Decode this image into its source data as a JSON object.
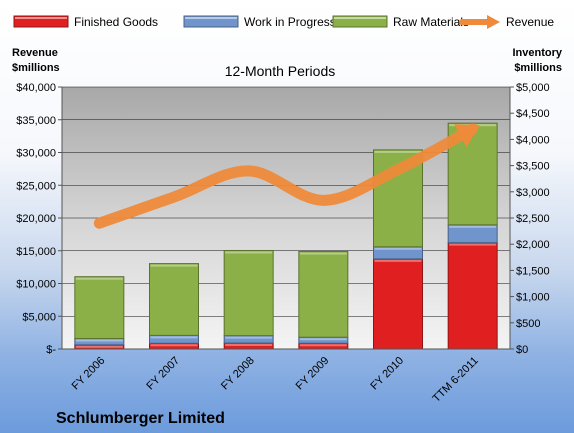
{
  "chart_data": {
    "type": "bar",
    "subtitle": "12-Month Periods",
    "caption": "Schlumberger Limited",
    "categories": [
      "FY 2006",
      "FY 2007",
      "FY 2008",
      "FY 2009",
      "FY 2010",
      "TTM 6-2011"
    ],
    "series": [
      {
        "name": "Finished Goods",
        "axis": "right",
        "stack": true,
        "color": "#e02020",
        "values": [
          80,
          110,
          115,
          110,
          1720,
          2030
        ]
      },
      {
        "name": "Work in Progress",
        "axis": "right",
        "stack": true,
        "color": "#6f95cc",
        "values": [
          120,
          150,
          140,
          115,
          230,
          340
        ]
      },
      {
        "name": "Raw Materials",
        "axis": "right",
        "stack": true,
        "color": "#8cb048",
        "values": [
          1180,
          1370,
          1625,
          1635,
          1850,
          1940
        ]
      },
      {
        "name": "Revenue",
        "axis": "left",
        "type": "line",
        "color": "#ee8a3a",
        "values": [
          19200,
          23200,
          27200,
          22700,
          27400,
          33600
        ]
      }
    ],
    "left_axis": {
      "label_line1": "Revenue",
      "label_line2": "$millions",
      "ylim": [
        0,
        40000
      ],
      "ticks": [
        "$-",
        "$5,000",
        "$10,000",
        "$15,000",
        "$20,000",
        "$25,000",
        "$30,000",
        "$35,000",
        "$40,000"
      ]
    },
    "right_axis": {
      "label_line1": "Inventory",
      "label_line2": "$millions",
      "ylim": [
        0,
        5000
      ],
      "ticks": [
        "$0",
        "$500",
        "$1,000",
        "$1,500",
        "$2,000",
        "$2,500",
        "$3,000",
        "$3,500",
        "$4,000",
        "$4,500",
        "$5,000"
      ]
    },
    "grid": true,
    "legend_position": "top"
  }
}
